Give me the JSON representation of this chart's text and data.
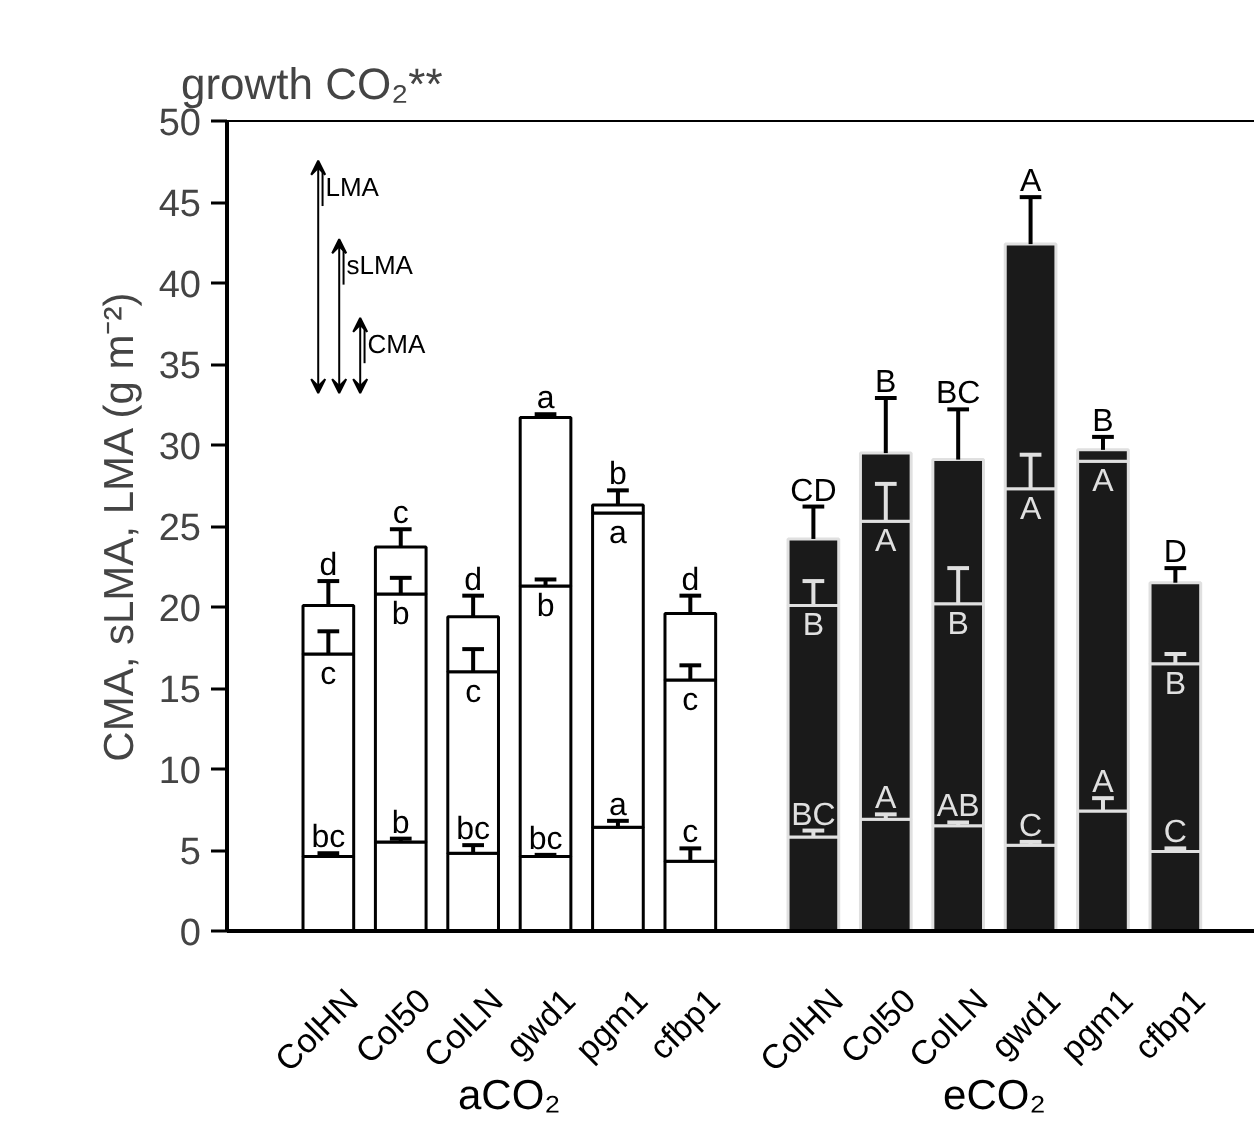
{
  "chart_data": {
    "type": "bar",
    "stacked": true,
    "title": "growth CO₂**",
    "ylabel": "CMA, sLMA, LMA (g m⁻²)",
    "categories": [
      "ColHN",
      "Col50",
      "ColLN",
      "gwd1",
      "pgm1",
      "cfbp1",
      "ColHN",
      "Col50",
      "ColLN",
      "gwd1",
      "pgm1",
      "cfbp1"
    ],
    "annotations": [
      "aCO₂",
      "eCO₂"
    ],
    "ylim": [
      0,
      50
    ],
    "yticks": [
      0,
      5,
      10,
      15,
      20,
      25,
      30,
      35,
      40,
      45,
      50
    ],
    "grid": false,
    "legend": "top left",
    "series": [
      {
        "name": "CMA",
        "colors": [
          "#ffffff",
          "#ffffff",
          "#ffffff",
          "#ffffff",
          "#ffffff",
          "#ffffff",
          "#1a1a1a",
          "#1a1a1a",
          "#1a1a1a",
          "#1a1a1a",
          "#1a1a1a",
          "#1a1a1a"
        ],
        "values": [
          4.6,
          5.5,
          4.8,
          4.6,
          6.4,
          4.3,
          5.8,
          6.9,
          6.5,
          5.3,
          7.4,
          4.9
        ],
        "errors": [
          [
            4.6,
            4.8
          ],
          [
            5.5,
            5.7
          ],
          [
            4.8,
            5.3
          ],
          [
            4.6,
            4.7
          ],
          [
            6.4,
            6.8
          ],
          [
            4.3,
            5.1
          ],
          [
            5.8,
            6.2
          ],
          [
            6.9,
            7.2
          ],
          [
            6.5,
            6.7
          ],
          [
            5.3,
            5.5
          ],
          [
            7.4,
            8.2
          ],
          [
            4.9,
            5.1
          ]
        ],
        "value_labels": [
          "bc",
          "b",
          "bc",
          "bc",
          "a",
          "c",
          "BC",
          "A",
          "AB",
          "C",
          "A",
          "C"
        ]
      },
      {
        "name": "sLMA",
        "colors": [
          "#ffffff",
          "#ffffff",
          "#ffffff",
          "#ffffff",
          "#ffffff",
          "#ffffff",
          "#1a1a1a",
          "#1a1a1a",
          "#1a1a1a",
          "#1a1a1a",
          "#1a1a1a",
          "#1a1a1a"
        ],
        "values": [
          12.5,
          15.3,
          11.2,
          16.7,
          19.4,
          11.2,
          14.3,
          18.4,
          13.7,
          22.0,
          21.6,
          11.6
        ],
        "errors": [
          [
            17.1,
            18.5
          ],
          [
            20.8,
            21.8
          ],
          [
            16.0,
            17.4
          ],
          [
            21.3,
            21.7
          ],
          null,
          [
            15.5,
            16.4
          ],
          [
            20.1,
            21.6
          ],
          [
            25.3,
            27.6
          ],
          [
            20.2,
            22.4
          ],
          [
            27.3,
            29.4
          ],
          null,
          [
            16.5,
            17.1
          ]
        ],
        "value_labels": [
          "c",
          "b",
          "c",
          "b",
          "a",
          "c",
          "B",
          "A",
          "B",
          "A",
          "A",
          "B"
        ]
      },
      {
        "name": "LMA",
        "colors": [
          "#ffffff",
          "#ffffff",
          "#ffffff",
          "#ffffff",
          "#ffffff",
          "#ffffff",
          "#1a1a1a",
          "#1a1a1a",
          "#1a1a1a",
          "#1a1a1a",
          "#1a1a1a",
          "#1a1a1a"
        ],
        "values": [
          3.0,
          2.9,
          3.4,
          10.4,
          0.5,
          4.1,
          4.1,
          4.2,
          8.9,
          15.1,
          0.7,
          5.0
        ],
        "errors": [
          [
            20.1,
            21.6
          ],
          [
            23.7,
            24.8
          ],
          [
            19.4,
            20.7
          ],
          [
            31.7,
            31.9
          ],
          [
            26.3,
            27.2
          ],
          [
            19.6,
            20.7
          ],
          [
            24.2,
            26.2
          ],
          [
            29.5,
            32.9
          ],
          [
            29.1,
            32.2
          ],
          [
            42.4,
            45.3
          ],
          [
            29.7,
            30.5
          ],
          [
            21.5,
            22.4
          ]
        ],
        "value_labels": [
          "d",
          "c",
          "d",
          "a",
          "b",
          "d",
          "CD",
          "B",
          "BC",
          "A",
          "B",
          "D"
        ]
      }
    ]
  }
}
